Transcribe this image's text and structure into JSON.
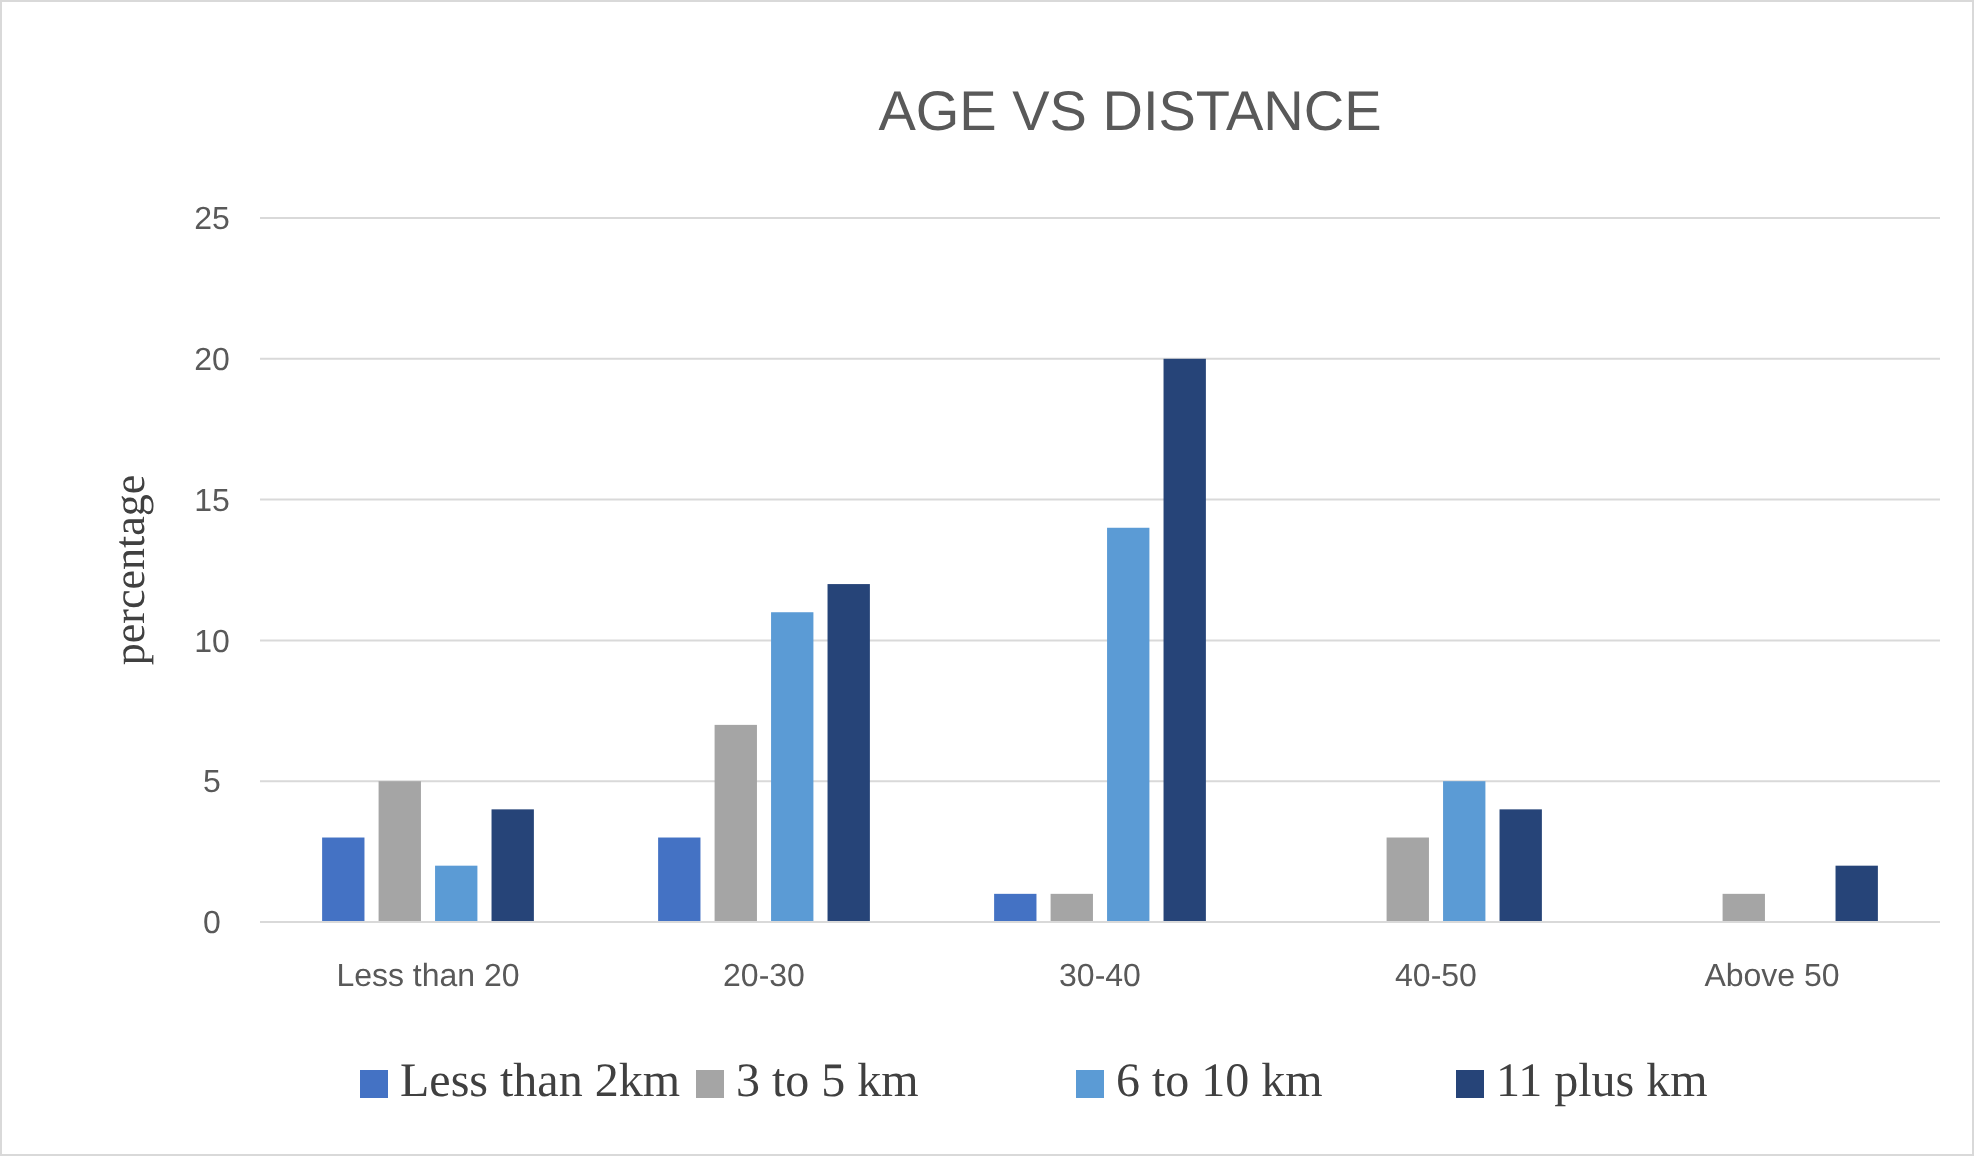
{
  "chart_data": {
    "type": "bar",
    "title": "AGE VS DISTANCE",
    "ylabel": "percentage",
    "categories": [
      "Less than 20",
      "20-30",
      "30-40",
      "40-50",
      "Above 50"
    ],
    "series": [
      {
        "name": "Less than 2km",
        "color": "#4472c4",
        "values": [
          3,
          3,
          1,
          0,
          0
        ]
      },
      {
        "name": "3 to 5 km",
        "color": "#a5a5a5",
        "values": [
          5,
          7,
          1,
          3,
          1
        ]
      },
      {
        "name": "6 to 10 km",
        "color": "#5b9bd5",
        "values": [
          2,
          11,
          14,
          5,
          0
        ]
      },
      {
        "name": "11 plus km",
        "color": "#264478",
        "values": [
          4,
          12,
          20,
          4,
          2
        ]
      }
    ],
    "ylim": [
      0,
      25
    ],
    "yticks": [
      0,
      5,
      10,
      15,
      20,
      25
    ],
    "grid": "y",
    "legend": "bottom"
  }
}
